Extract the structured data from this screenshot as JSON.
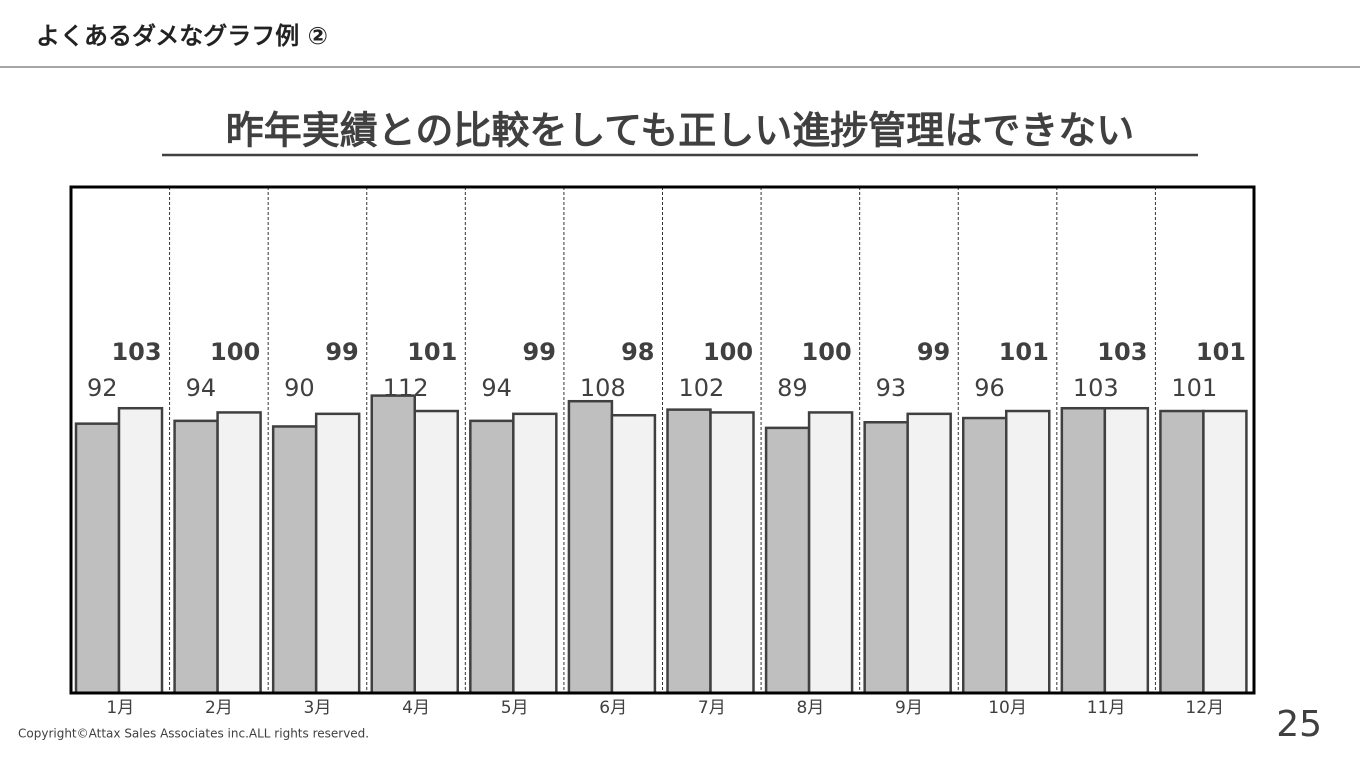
{
  "slide": {
    "heading": "よくあるダメなグラフ例 ②",
    "copyright": "Copyright©Attax Sales Associates inc.ALL rights reserved.",
    "page_number": "25"
  },
  "chart_data": {
    "type": "bar",
    "title": "昨年実績との比較をしても正しい進捗管理はできない",
    "categories": [
      "1月",
      "2月",
      "3月",
      "4月",
      "5月",
      "6月",
      "7月",
      "8月",
      "9月",
      "10月",
      "11月",
      "12月"
    ],
    "series": [
      {
        "color": "#bfbfbf",
        "values": [
          92,
          94,
          90,
          112,
          94,
          108,
          102,
          89,
          93,
          96,
          103,
          101
        ]
      },
      {
        "color": "#f2f2f2",
        "values": [
          103,
          100,
          99,
          101,
          99,
          98,
          100,
          100,
          99,
          101,
          103,
          101
        ]
      }
    ],
    "ylim": [
      -100,
      260.7
    ]
  }
}
